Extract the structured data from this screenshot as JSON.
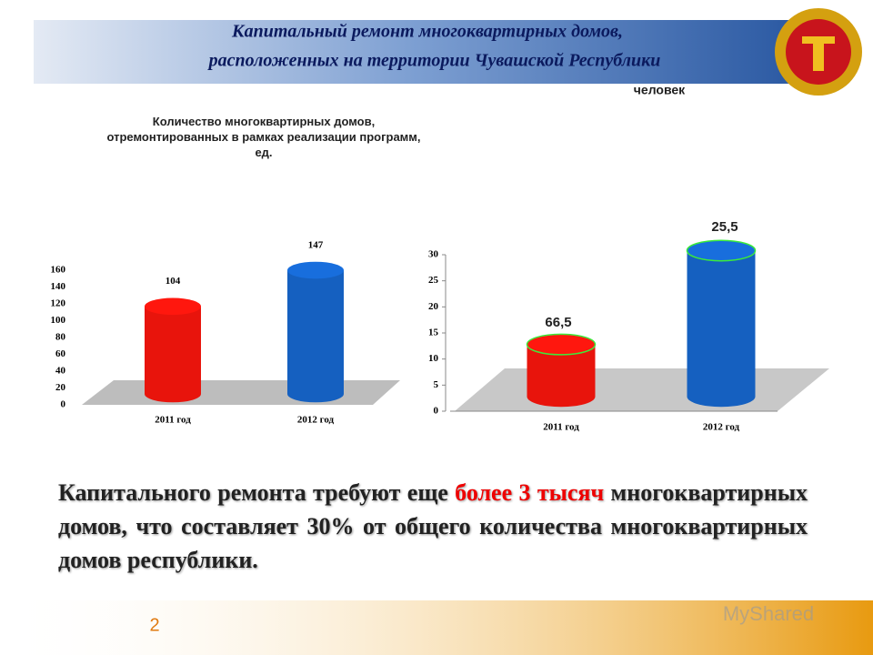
{
  "header": {
    "title_lines": [
      "Капитальный ремонт многоквартирных домов,",
      "расположенных на территории Чувашской Республики"
    ]
  },
  "chart_data": [
    {
      "type": "bar",
      "title": "Количество многоквартирных домов, отремонтированных в рамках реализации программ, ед.",
      "categories": [
        "2011 год",
        "2012 год"
      ],
      "values": [
        104,
        147
      ],
      "colors": [
        "#e8140c",
        "#1560c0"
      ],
      "ylim": [
        0,
        160
      ],
      "yticks": [
        0,
        20,
        40,
        60,
        80,
        100,
        120,
        140,
        160
      ]
    },
    {
      "type": "bar",
      "subtitle": "человек",
      "categories": [
        "2011 год",
        "2012 год"
      ],
      "values": [
        10,
        28
      ],
      "colors": [
        "#e8140c",
        "#1560c0"
      ],
      "annotations": [
        "66,5",
        "25,5"
      ],
      "ylim": [
        0,
        30
      ],
      "yticks": [
        0,
        5,
        10,
        15,
        20,
        25,
        30
      ]
    }
  ],
  "body": {
    "parts": [
      "Капитального ремонта  требуют еще ",
      "более 3 тысяч",
      " многоквартирных домов, что составляет 30% от общего количества многоквартирных домов республики."
    ]
  },
  "page_number": "2",
  "watermark": "MyShared"
}
